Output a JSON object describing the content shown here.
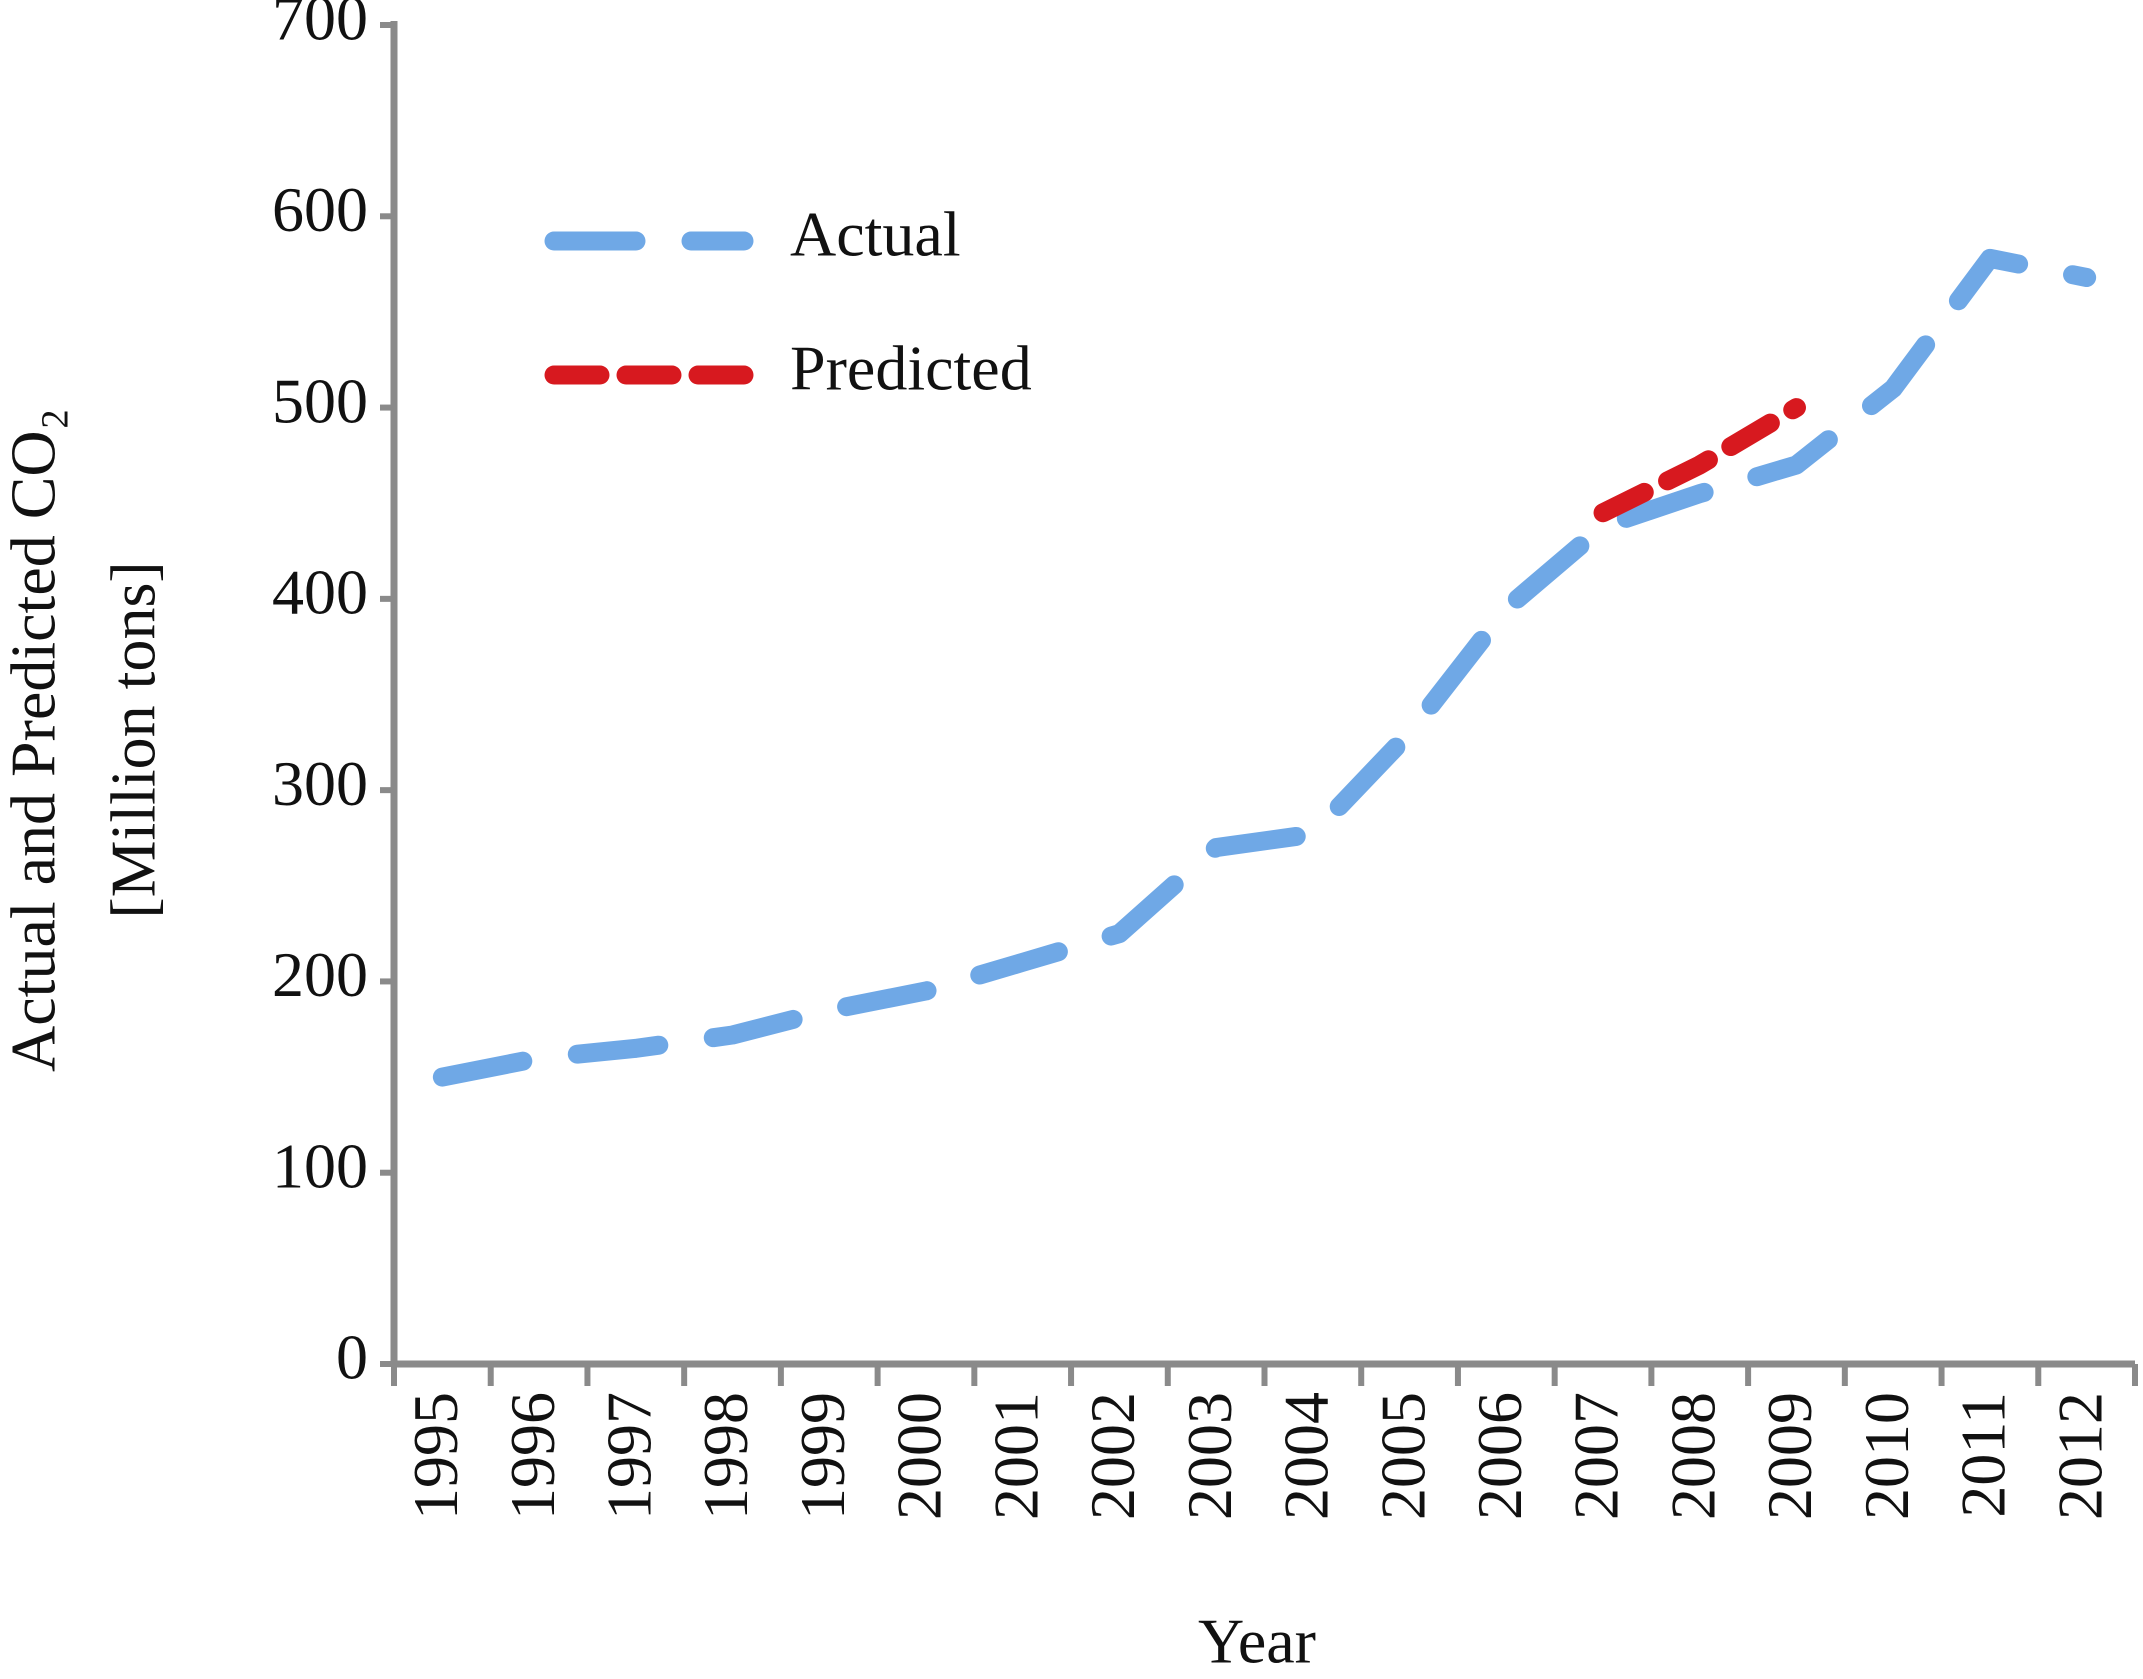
{
  "chart_data": {
    "type": "line",
    "x_label": "Year",
    "y_label": [
      "Actual and Predicted CO₂",
      "[Million tons]"
    ],
    "categories": [
      "1995",
      "1996",
      "1997",
      "1998",
      "1999",
      "2000",
      "2001",
      "2002",
      "2003",
      "2004",
      "2005",
      "2006",
      "2007",
      "2008",
      "2009",
      "2010",
      "2011",
      "2012"
    ],
    "series": [
      {
        "name": "Actual",
        "color": "#6fa8e6",
        "dash": "dashed",
        "values": [
          150,
          160,
          165,
          172,
          185,
          195,
          210,
          225,
          270,
          277,
          330,
          395,
          438,
          455,
          470,
          510,
          578,
          568
        ]
      },
      {
        "name": "Predicted",
        "color": "#d7191f",
        "dash": "dotted",
        "values": [
          null,
          null,
          null,
          null,
          null,
          null,
          null,
          null,
          null,
          null,
          null,
          null,
          445,
          470,
          500,
          null,
          null,
          null
        ]
      }
    ],
    "ylim": [
      0,
      700
    ],
    "yticks": [
      0,
      100,
      200,
      300,
      400,
      500,
      600,
      700
    ],
    "grid": false,
    "legend": "upper left"
  }
}
